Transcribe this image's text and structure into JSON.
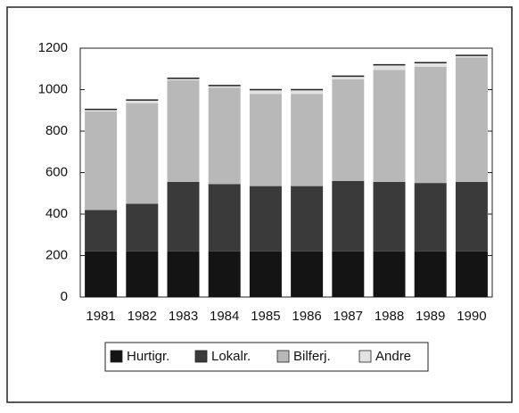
{
  "chart_data": {
    "type": "stacked-bar",
    "categories": [
      "1981",
      "1982",
      "1983",
      "1984",
      "1985",
      "1986",
      "1987",
      "1988",
      "1989",
      "1990"
    ],
    "series": [
      {
        "name": "Hurtigr.",
        "color": "#141414",
        "values": [
          220,
          220,
          220,
          220,
          220,
          220,
          220,
          220,
          220,
          220
        ]
      },
      {
        "name": "Lokalr.",
        "color": "#3a3a3a",
        "values": [
          200,
          230,
          335,
          325,
          315,
          315,
          340,
          335,
          330,
          335
        ]
      },
      {
        "name": "Bilferj.",
        "color": "#b8b8b8",
        "values": [
          475,
          485,
          490,
          465,
          445,
          445,
          490,
          540,
          560,
          600
        ]
      },
      {
        "name": "Andre",
        "color": "#e2e2e2",
        "values": [
          10,
          15,
          10,
          10,
          20,
          20,
          15,
          25,
          20,
          10
        ]
      }
    ],
    "ylim": [
      0,
      1200
    ],
    "yticks": [
      0,
      200,
      400,
      600,
      800,
      1000,
      1200
    ],
    "grid": false
  }
}
